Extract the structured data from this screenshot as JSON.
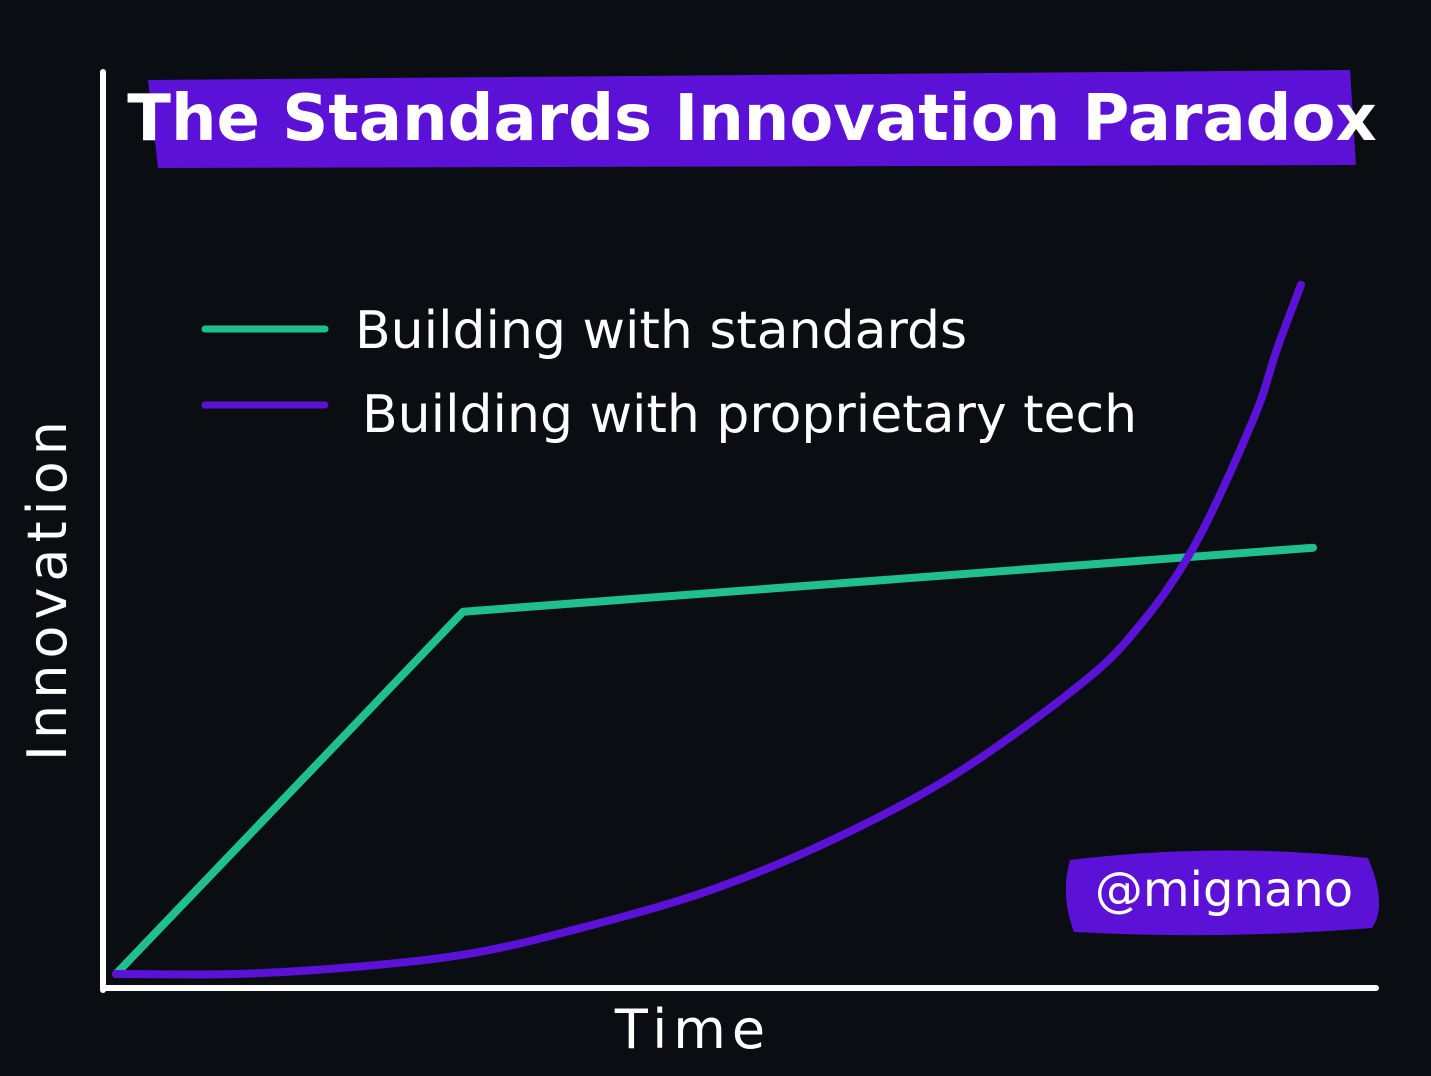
{
  "chart_data": {
    "type": "line",
    "title": "The Standards Innovation Paradox",
    "xlabel": "Time",
    "ylabel": "Innovation",
    "x": [
      0,
      0.1,
      0.2,
      0.3,
      0.4,
      0.5,
      0.6,
      0.7,
      0.8,
      0.85,
      0.9,
      0.95,
      1.0
    ],
    "series": [
      {
        "name": "Building with standards",
        "color": "#1fbf8f",
        "x": [
          0,
          0.29,
          1.0
        ],
        "values": [
          0,
          0.51,
          0.6
        ]
      },
      {
        "name": "Building with proprietary tech",
        "color": "#5b12d6",
        "x": [
          0,
          0.1,
          0.2,
          0.3,
          0.4,
          0.5,
          0.6,
          0.7,
          0.8,
          0.85,
          0.9,
          0.95,
          0.97,
          0.99
        ],
        "values": [
          0,
          0,
          0.01,
          0.03,
          0.07,
          0.12,
          0.19,
          0.28,
          0.4,
          0.48,
          0.6,
          0.78,
          0.88,
          0.97
        ]
      }
    ],
    "xlim": [
      0,
      1.04
    ],
    "ylim": [
      0,
      1.05
    ],
    "grid": false,
    "legend_position": "top-left"
  },
  "credit": "@mignano",
  "colors": {
    "background": "#0a0d12",
    "axis": "#ffffff",
    "highlight": "#5b12d6",
    "standards": "#1fbf8f",
    "proprietary": "#5b12d6"
  }
}
